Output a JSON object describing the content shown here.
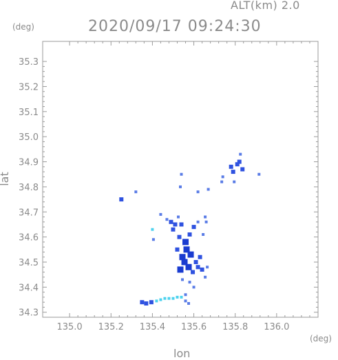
{
  "header": {
    "altitude": "ALT(km) 2.0",
    "timestamp": "2020/09/17 09:24:30"
  },
  "chart_data": {
    "type": "scatter",
    "xlabel": "lon",
    "ylabel": "lat",
    "x_unit": "(deg)",
    "y_unit": "(deg)",
    "xlim": [
      134.87,
      136.2
    ],
    "ylim": [
      34.28,
      35.38
    ],
    "xticks": [
      "135.0",
      "135.2",
      "135.4",
      "135.6",
      "135.8",
      "136.0"
    ],
    "yticks": [
      "35.3",
      "35.2",
      "35.1",
      "35.0",
      "34.9",
      "34.8",
      "34.7",
      "34.6",
      "34.5",
      "34.4",
      "34.3"
    ],
    "grid": false,
    "colors": {
      "weak": "#5a7ce6",
      "moderate": "#2f52e0",
      "strong": "#1a3cd0",
      "light": "#4dd2ee"
    },
    "points": [
      {
        "x": 135.545,
        "y": 34.52,
        "c": "strong"
      },
      {
        "x": 135.555,
        "y": 34.5,
        "c": "strong"
      },
      {
        "x": 135.565,
        "y": 34.55,
        "c": "strong"
      },
      {
        "x": 135.575,
        "y": 34.48,
        "c": "strong"
      },
      {
        "x": 135.535,
        "y": 34.47,
        "c": "strong"
      },
      {
        "x": 135.585,
        "y": 34.53,
        "c": "strong"
      },
      {
        "x": 135.56,
        "y": 34.58,
        "c": "strong"
      },
      {
        "x": 135.595,
        "y": 34.46,
        "c": "moderate"
      },
      {
        "x": 135.61,
        "y": 34.5,
        "c": "moderate"
      },
      {
        "x": 135.62,
        "y": 34.48,
        "c": "moderate"
      },
      {
        "x": 135.63,
        "y": 34.52,
        "c": "moderate"
      },
      {
        "x": 135.64,
        "y": 34.47,
        "c": "moderate"
      },
      {
        "x": 135.53,
        "y": 34.6,
        "c": "moderate"
      },
      {
        "x": 135.52,
        "y": 34.55,
        "c": "moderate"
      },
      {
        "x": 135.51,
        "y": 34.65,
        "c": "moderate"
      },
      {
        "x": 135.5,
        "y": 34.63,
        "c": "moderate"
      },
      {
        "x": 135.49,
        "y": 34.66,
        "c": "moderate"
      },
      {
        "x": 135.54,
        "y": 34.65,
        "c": "moderate"
      },
      {
        "x": 135.58,
        "y": 34.61,
        "c": "moderate"
      },
      {
        "x": 135.6,
        "y": 34.64,
        "c": "moderate"
      },
      {
        "x": 135.62,
        "y": 34.66,
        "c": "weak"
      },
      {
        "x": 135.655,
        "y": 34.68,
        "c": "weak"
      },
      {
        "x": 135.66,
        "y": 34.66,
        "c": "weak"
      },
      {
        "x": 135.645,
        "y": 34.61,
        "c": "weak"
      },
      {
        "x": 135.665,
        "y": 34.48,
        "c": "weak"
      },
      {
        "x": 135.655,
        "y": 34.44,
        "c": "weak"
      },
      {
        "x": 135.58,
        "y": 34.42,
        "c": "weak"
      },
      {
        "x": 135.56,
        "y": 34.37,
        "c": "weak"
      },
      {
        "x": 135.545,
        "y": 34.43,
        "c": "weak"
      },
      {
        "x": 135.6,
        "y": 34.4,
        "c": "weak"
      },
      {
        "x": 135.525,
        "y": 34.68,
        "c": "weak"
      },
      {
        "x": 135.47,
        "y": 34.67,
        "c": "weak"
      },
      {
        "x": 135.4,
        "y": 34.63,
        "c": "light"
      },
      {
        "x": 135.405,
        "y": 34.59,
        "c": "weak"
      },
      {
        "x": 135.44,
        "y": 34.69,
        "c": "weak"
      },
      {
        "x": 135.535,
        "y": 34.8,
        "c": "weak"
      },
      {
        "x": 135.62,
        "y": 34.78,
        "c": "weak"
      },
      {
        "x": 135.67,
        "y": 34.79,
        "c": "weak"
      },
      {
        "x": 135.735,
        "y": 34.82,
        "c": "weak"
      },
      {
        "x": 135.32,
        "y": 34.78,
        "c": "weak"
      },
      {
        "x": 135.25,
        "y": 34.75,
        "c": "moderate"
      },
      {
        "x": 135.54,
        "y": 34.85,
        "c": "weak"
      },
      {
        "x": 135.74,
        "y": 34.84,
        "c": "weak"
      },
      {
        "x": 135.78,
        "y": 34.88,
        "c": "moderate"
      },
      {
        "x": 135.79,
        "y": 34.86,
        "c": "moderate"
      },
      {
        "x": 135.81,
        "y": 34.89,
        "c": "moderate"
      },
      {
        "x": 135.82,
        "y": 34.9,
        "c": "moderate"
      },
      {
        "x": 135.835,
        "y": 34.87,
        "c": "moderate"
      },
      {
        "x": 135.825,
        "y": 34.93,
        "c": "weak"
      },
      {
        "x": 135.915,
        "y": 34.85,
        "c": "weak"
      },
      {
        "x": 135.795,
        "y": 34.82,
        "c": "weak"
      },
      {
        "x": 135.35,
        "y": 34.34,
        "c": "moderate"
      },
      {
        "x": 135.37,
        "y": 34.335,
        "c": "moderate"
      },
      {
        "x": 135.395,
        "y": 34.34,
        "c": "moderate"
      },
      {
        "x": 135.42,
        "y": 34.345,
        "c": "light"
      },
      {
        "x": 135.44,
        "y": 34.35,
        "c": "light"
      },
      {
        "x": 135.46,
        "y": 34.355,
        "c": "light"
      },
      {
        "x": 135.48,
        "y": 34.355,
        "c": "light"
      },
      {
        "x": 135.5,
        "y": 34.355,
        "c": "light"
      },
      {
        "x": 135.52,
        "y": 34.36,
        "c": "light"
      },
      {
        "x": 135.54,
        "y": 34.36,
        "c": "light"
      },
      {
        "x": 135.56,
        "y": 34.345,
        "c": "weak"
      },
      {
        "x": 135.575,
        "y": 34.335,
        "c": "weak"
      }
    ]
  }
}
